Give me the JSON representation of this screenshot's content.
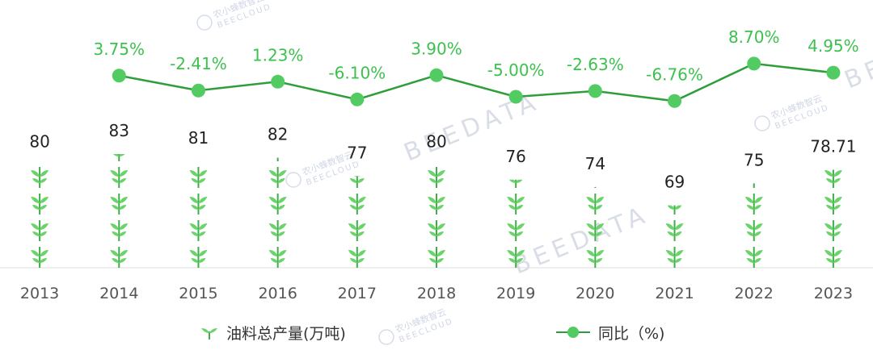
{
  "chart_data": {
    "type": "bar+line",
    "categories": [
      "2013",
      "2014",
      "2015",
      "2016",
      "2017",
      "2018",
      "2019",
      "2020",
      "2021",
      "2022",
      "2023"
    ],
    "series": [
      {
        "name": "油料总产量(万吨)",
        "kind": "pictorial-bar",
        "values": [
          80,
          83,
          81,
          82,
          77,
          80,
          76,
          74,
          69,
          75,
          78.71
        ],
        "labels": [
          "80",
          "83",
          "81",
          "82",
          "77",
          "80",
          "76",
          "74",
          "69",
          "75",
          "78.71"
        ]
      },
      {
        "name": "同比（%)",
        "kind": "line",
        "values": [
          null,
          3.75,
          -2.41,
          1.23,
          -6.1,
          3.9,
          -5.0,
          -2.63,
          -6.76,
          8.7,
          4.95
        ],
        "labels": [
          "",
          "3.75%",
          "-2.41%",
          "1.23%",
          "-6.10%",
          "3.90%",
          "-5.00%",
          "-2.63%",
          "-6.76%",
          "8.70%",
          "4.95%"
        ]
      }
    ],
    "colors": {
      "line": "#2f9e3a",
      "marker": "#52cc62",
      "line_label": "#3cc14e",
      "bar_label": "#222222",
      "leaf": "#6ad36a",
      "stem": "#3fae49"
    },
    "watermark": [
      "BEEDATA",
      "农小蜂数智云",
      "BEECLOUD"
    ]
  },
  "legend": {
    "bar_label": "油料总产量(万吨)",
    "line_label": "同比（%)"
  }
}
